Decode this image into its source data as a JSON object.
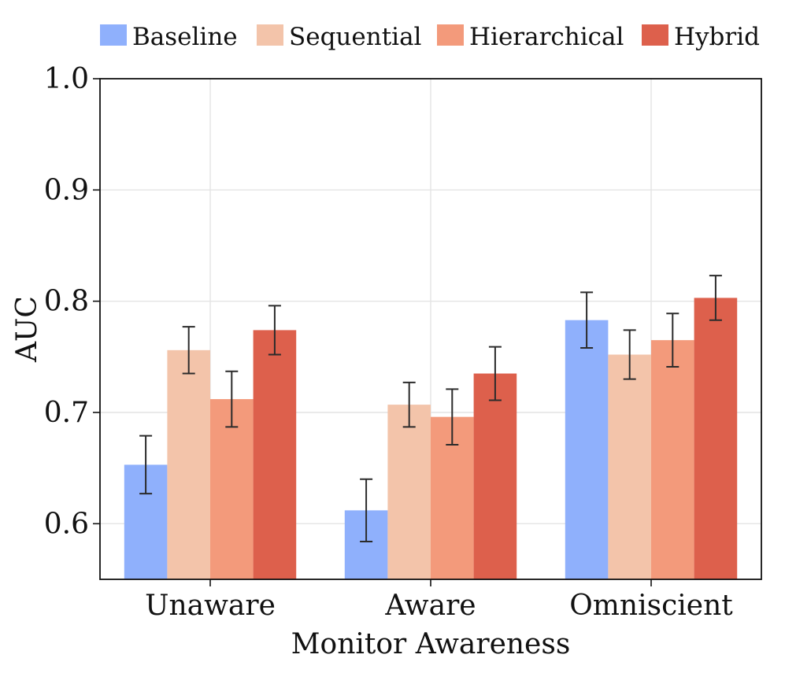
{
  "chart_data": {
    "type": "bar",
    "xlabel": "Monitor Awareness",
    "ylabel": "AUC",
    "ylim": [
      0.55,
      1.0
    ],
    "yticks": [
      0.6,
      0.7,
      0.8,
      0.9,
      1.0
    ],
    "ytick_labels": [
      "0.6",
      "0.7",
      "0.8",
      "0.9",
      "1.0"
    ],
    "grid": true,
    "legend_position": "top",
    "categories": [
      "Unaware",
      "Aware",
      "Omniscient"
    ],
    "series": [
      {
        "name": "Baseline",
        "color": "#8fb0fc",
        "values": [
          0.653,
          0.612,
          0.783
        ],
        "err_low": [
          0.627,
          0.584,
          0.758
        ],
        "err_high": [
          0.679,
          0.64,
          0.808
        ]
      },
      {
        "name": "Sequential",
        "color": "#f3c4aa",
        "values": [
          0.756,
          0.707,
          0.752
        ],
        "err_low": [
          0.735,
          0.687,
          0.73
        ],
        "err_high": [
          0.777,
          0.727,
          0.774
        ]
      },
      {
        "name": "Hierarchical",
        "color": "#f39a7b",
        "values": [
          0.712,
          0.696,
          0.765
        ],
        "err_low": [
          0.687,
          0.671,
          0.741
        ],
        "err_high": [
          0.737,
          0.721,
          0.789
        ]
      },
      {
        "name": "Hybrid",
        "color": "#dd604c",
        "values": [
          0.774,
          0.735,
          0.803
        ],
        "err_low": [
          0.752,
          0.711,
          0.783
        ],
        "err_high": [
          0.796,
          0.759,
          0.823
        ]
      }
    ]
  }
}
